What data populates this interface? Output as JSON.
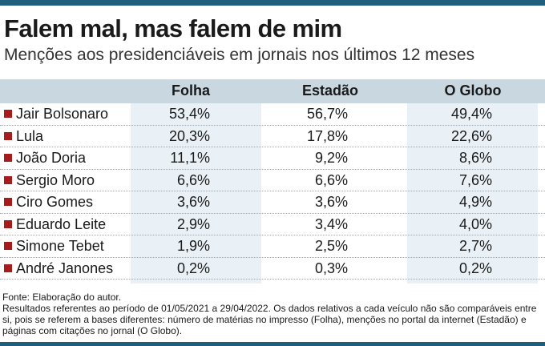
{
  "header": {
    "title": "Falem mal, mas falem de mim",
    "subtitle": "Menções aos presidenciáveis em jornais nos últimos 12 meses"
  },
  "colors": {
    "accent_bar": "#1f5f7d",
    "bullet": "#a81b1b",
    "header_band": "#c9d7e0",
    "column_shade": "#eaf1f6"
  },
  "chart_data": {
    "type": "table",
    "title": "Falem mal, mas falem de mim",
    "subtitle": "Menções aos presidenciáveis em jornais nos últimos 12 meses",
    "columns": [
      "Folha",
      "Estadão",
      "O Globo"
    ],
    "rows": [
      {
        "name": "Jair Bolsonaro",
        "values": [
          "53,4%",
          "56,7%",
          "49,4%"
        ]
      },
      {
        "name": "Lula",
        "values": [
          "20,3%",
          "17,8%",
          "22,6%"
        ]
      },
      {
        "name": "João Doria",
        "values": [
          "11,1%",
          "9,2%",
          "8,6%"
        ]
      },
      {
        "name": "Sergio Moro",
        "values": [
          "6,6%",
          "6,6%",
          "7,6%"
        ]
      },
      {
        "name": "Ciro Gomes",
        "values": [
          "3,6%",
          "3,6%",
          "4,9%"
        ]
      },
      {
        "name": "Eduardo Leite",
        "values": [
          "2,9%",
          "3,4%",
          "4,0%"
        ]
      },
      {
        "name": "Simone Tebet",
        "values": [
          "1,9%",
          "2,5%",
          "2,7%"
        ]
      },
      {
        "name": "André Janones",
        "values": [
          "0,2%",
          "0,3%",
          "0,2%"
        ]
      }
    ]
  },
  "notes": {
    "source": "Fonte: Elaboração do autor.",
    "detail": "Resultados referentes ao período de 01/05/2021 a 29/04/2022. Os dados relativos a cada veículo não são comparáveis entre si, pois se referem a bases diferentes: número de matérias no impresso (Folha), menções no portal da internet (Estadão) e páginas com citações no jornal (O Globo)."
  }
}
